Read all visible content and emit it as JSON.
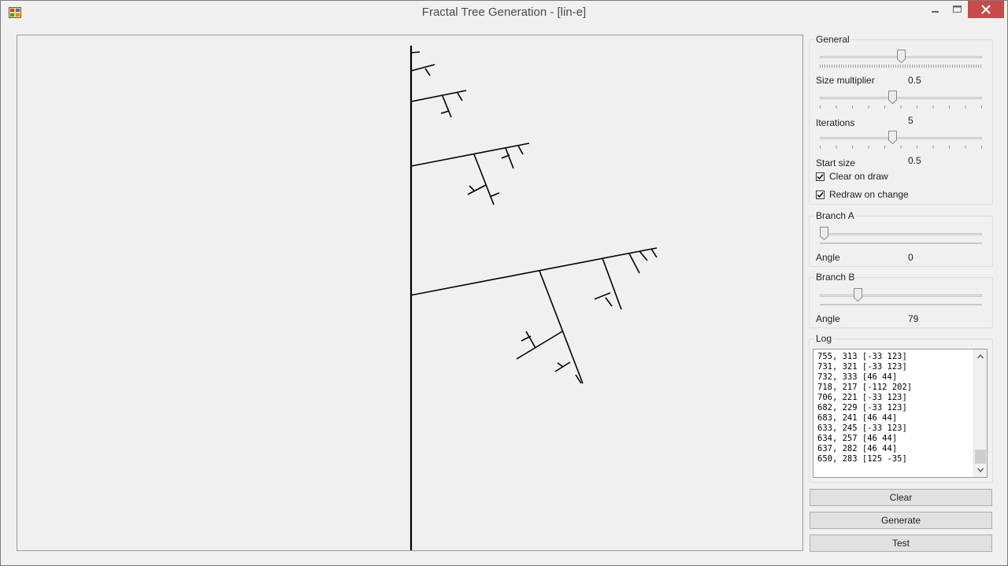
{
  "window": {
    "title": "Fractal Tree Generation - [lin-e]"
  },
  "general": {
    "label": "General",
    "size_multiplier": {
      "label": "Size multiplier",
      "value": "0.5",
      "slider_fraction": 0.5
    },
    "iterations": {
      "label": "Iterations",
      "value": "5",
      "slider_fraction": 0.45
    },
    "start_size": {
      "label": "Start size",
      "value": "0.5",
      "slider_fraction": 0.45
    },
    "clear_on_draw": {
      "label": "Clear on draw",
      "checked": true
    },
    "redraw_on_change": {
      "label": "Redraw on change",
      "checked": true
    }
  },
  "branch_a": {
    "label": "Branch A",
    "angle_label": "Angle",
    "angle": "0",
    "slider_fraction": 0.0
  },
  "branch_b": {
    "label": "Branch B",
    "angle_label": "Angle",
    "angle": "79",
    "slider_fraction": 0.22
  },
  "log": {
    "label": "Log",
    "lines": [
      "755, 313 [-33 123]",
      "731, 321 [-33 123]",
      "732, 333 [46 44]",
      "718, 217 [-112 202]",
      "706, 221 [-33 123]",
      "682, 229 [-33 123]",
      "683, 241 [46 44]",
      "633, 245 [-33 123]",
      "634, 257 [46 44]",
      "637, 282 [46 44]",
      "650, 283 [125 -35]"
    ]
  },
  "buttons": {
    "clear": "Clear",
    "generate": "Generate",
    "test": "Test"
  },
  "icons": {
    "app": "app-icon",
    "minimize": "minimize-icon",
    "maximize": "maximize-icon",
    "close": "close-icon",
    "scroll_up": "chevron-up-icon",
    "scroll_down": "chevron-down-icon",
    "checkmark": "checkmark-icon"
  },
  "colors": {
    "close_button": "#c74b4b",
    "tree_stroke": "#000000",
    "window_bg": "#f0f0f0"
  }
}
